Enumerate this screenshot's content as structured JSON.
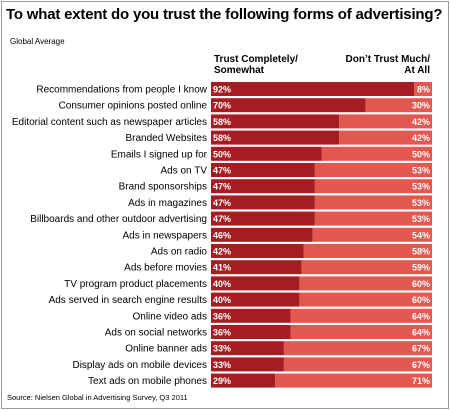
{
  "header": {
    "title": "To what extent do you trust the following forms of advertising?",
    "subtitle": "Global Average",
    "col_trust_line1": "Trust Completely/",
    "col_trust_line2": "Somewhat",
    "col_dont_line1": "Don’t Trust Much/",
    "col_dont_line2": "At All"
  },
  "footer": {
    "source": "Source: Nielsen Global in Advertising Survey, Q3 2011"
  },
  "chart_data": {
    "type": "bar",
    "stacked": true,
    "orientation": "horizontal",
    "title": "To what extent do you trust the following forms of advertising?",
    "subtitle": "Global Average",
    "categories": [
      "Recommendations from people I know",
      "Consumer opinions posted online",
      "Editorial content such as newspaper articles",
      "Branded Websites",
      "Emails I signed up for",
      "Ads on TV",
      "Brand sponsorships",
      "Ads in magazines",
      "Billboards and other outdoor advertising",
      "Ads in newspapers",
      "Ads on radio",
      "Ads before movies",
      "TV program product placements",
      "Ads served in search engine results",
      "Online video ads",
      "Ads on social networks",
      "Online banner ads",
      "Display ads on mobile devices",
      "Text ads on mobile phones"
    ],
    "series": [
      {
        "name": "Trust Completely/ Somewhat",
        "color": "#a51d23",
        "values": [
          92,
          70,
          58,
          58,
          50,
          47,
          47,
          47,
          47,
          46,
          42,
          41,
          40,
          40,
          36,
          36,
          33,
          33,
          29
        ],
        "labels": [
          "92%",
          "70%",
          "58%",
          "58%",
          "50%",
          "47%",
          "47%",
          "47%",
          "47%",
          "46%",
          "42%",
          "41%",
          "40%",
          "40%",
          "36%",
          "36%",
          "33%",
          "33%",
          "29%"
        ]
      },
      {
        "name": "Don’t Trust Much/ At All",
        "color": "#e2574f",
        "values": [
          8,
          30,
          42,
          42,
          50,
          53,
          53,
          53,
          53,
          54,
          58,
          59,
          60,
          60,
          64,
          64,
          67,
          67,
          71
        ],
        "labels": [
          "8%",
          "30%",
          "42%",
          "42%",
          "50%",
          "53%",
          "53%",
          "53%",
          "53%",
          "54%",
          "58%",
          "59%",
          "60%",
          "60%",
          "64%",
          "64%",
          "67%",
          "67%",
          "71%"
        ]
      }
    ],
    "xlim": [
      0,
      100
    ],
    "grid": false,
    "legend": "column headers above bars"
  }
}
